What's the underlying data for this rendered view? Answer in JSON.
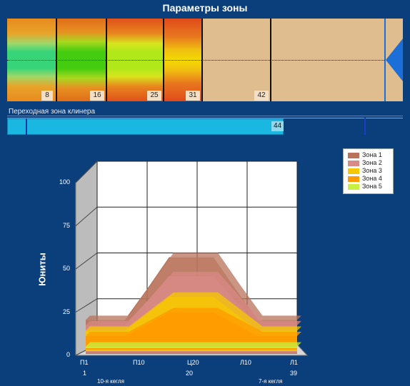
{
  "title": "Параметры зоны",
  "zone_labels": [
    "8",
    "16",
    "25",
    "31",
    "42"
  ],
  "cleaner": {
    "label": "Переходная зона клинера",
    "value": "44"
  },
  "colors": {
    "background": "#0b3f7c",
    "zone_bar_bg": "#dfbd8f",
    "cleaner_fill": "#1ab8e0"
  },
  "legend": [
    {
      "name": "Зона 1",
      "color": "#b8735a"
    },
    {
      "name": "Зона 2",
      "color": "#d88a84"
    },
    {
      "name": "Зона 3",
      "color": "#f6c800"
    },
    {
      "name": "Зона 4",
      "color": "#ff9a00"
    },
    {
      "name": "Зона 5",
      "color": "#c8f040"
    }
  ],
  "chart_data": {
    "type": "area",
    "ylabel": "Юниты",
    "ylim": [
      0,
      100
    ],
    "yticks": [
      "0",
      "25",
      "50",
      "75",
      "100"
    ],
    "x_ticks": [
      "П1",
      "П10",
      "Ц20",
      "Л10",
      "Л1"
    ],
    "x_sub_ticks": [
      "1",
      "20",
      "39"
    ],
    "x_notes": [
      "10-я кегля",
      "7-я кегля"
    ],
    "series": [
      {
        "name": "Зона 1",
        "x": [
          1,
          8,
          12,
          16,
          24,
          28,
          32,
          39
        ],
        "values": [
          20,
          20,
          38,
          57,
          57,
          38,
          20,
          20
        ]
      },
      {
        "name": "Зона 2",
        "x": [
          1,
          8,
          12,
          16,
          24,
          28,
          32,
          39
        ],
        "values": [
          16,
          16,
          30,
          45,
          45,
          30,
          16,
          16
        ]
      },
      {
        "name": "Зона 3",
        "x": [
          1,
          8,
          12,
          16,
          24,
          28,
          32,
          39
        ],
        "values": [
          12,
          12,
          22,
          32,
          32,
          22,
          12,
          12
        ]
      },
      {
        "name": "Зона 4",
        "x": [
          1,
          8,
          12,
          16,
          24,
          28,
          32,
          39
        ],
        "values": [
          8,
          8,
          15,
          22,
          22,
          15,
          8,
          8
        ]
      },
      {
        "name": "Зона 5",
        "x": [
          1,
          39
        ],
        "values": [
          1,
          1
        ]
      }
    ],
    "grid": true,
    "legend_position": "top-right"
  }
}
